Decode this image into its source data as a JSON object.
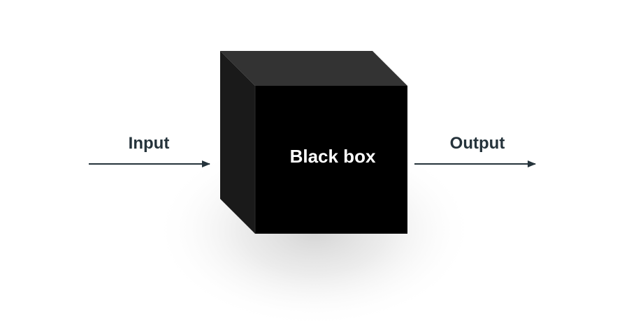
{
  "diagram": {
    "box_label": "Black box",
    "input_label": "Input",
    "output_label": "Output"
  },
  "colors": {
    "background": "#ffffff",
    "box_front": "#000000",
    "box_top": "#333333",
    "box_side": "#1a1a1a",
    "box_text": "#ffffff",
    "arrow": "#25333b",
    "label_text": "#25333b",
    "shadow": "#d9d9d9"
  }
}
